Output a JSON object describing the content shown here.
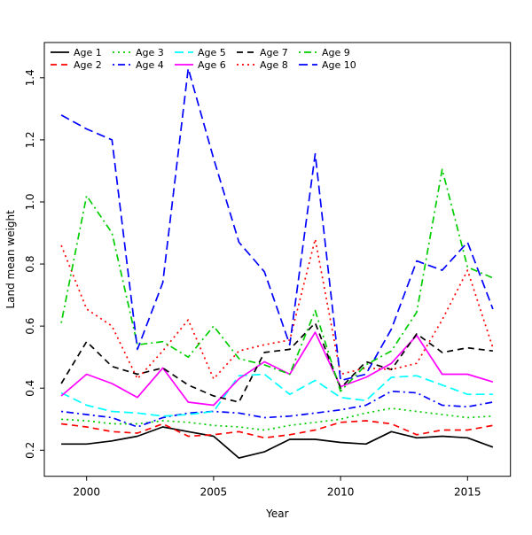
{
  "chart_data": {
    "type": "line",
    "title": "",
    "xlabel": "Year",
    "ylabel": "Land mean weight",
    "x": [
      1999,
      2000,
      2001,
      2002,
      2003,
      2004,
      2005,
      2006,
      2007,
      2008,
      2009,
      2010,
      2011,
      2012,
      2013,
      2014,
      2015,
      2016
    ],
    "x_ticks": [
      2000,
      2005,
      2010,
      2015
    ],
    "y_ticks": [
      0.2,
      0.4,
      0.6,
      0.8,
      1.0,
      1.2,
      1.4
    ],
    "y_tick_labels": [
      "0.2",
      "0.4",
      "0.6",
      "0.8",
      "1.0",
      "1.2",
      "1.4"
    ],
    "x_tick_labels": [
      "2000",
      "2005",
      "2010",
      "2015"
    ],
    "ylim": [
      0.13,
      1.47
    ],
    "xlim": [
      1998.3,
      2016.7
    ],
    "grid": false,
    "legend_position": "top-left, 2 rows x 5 columns, no border",
    "series": [
      {
        "name": "Age 1",
        "color": "#000000",
        "linestyle": "solid",
        "values": [
          0.22,
          0.22,
          0.23,
          0.245,
          0.275,
          0.26,
          0.245,
          0.175,
          0.195,
          0.235,
          0.235,
          0.225,
          0.22,
          0.26,
          0.24,
          0.245,
          0.24,
          0.21
        ]
      },
      {
        "name": "Age 2",
        "color": "#ff0000",
        "linestyle": "dashed",
        "values": [
          0.285,
          0.275,
          0.26,
          0.255,
          0.285,
          0.245,
          0.25,
          0.26,
          0.24,
          0.25,
          0.265,
          0.29,
          0.295,
          0.285,
          0.25,
          0.265,
          0.265,
          0.28
        ]
      },
      {
        "name": "Age 3",
        "color": "#00cd00",
        "linestyle": "dotted",
        "values": [
          0.3,
          0.295,
          0.285,
          0.285,
          0.295,
          0.29,
          0.28,
          0.275,
          0.265,
          0.28,
          0.29,
          0.3,
          0.32,
          0.335,
          0.325,
          0.315,
          0.305,
          0.31
        ]
      },
      {
        "name": "Age 4",
        "color": "#0000ff",
        "linestyle": "dotdash",
        "values": [
          0.325,
          0.315,
          0.305,
          0.275,
          0.305,
          0.32,
          0.325,
          0.32,
          0.305,
          0.31,
          0.32,
          0.33,
          0.345,
          0.39,
          0.385,
          0.345,
          0.34,
          0.355
        ]
      },
      {
        "name": "Age 5",
        "color": "#00ffff",
        "linestyle": "longdash",
        "values": [
          0.385,
          0.345,
          0.325,
          0.32,
          0.31,
          0.315,
          0.325,
          0.44,
          0.445,
          0.38,
          0.425,
          0.37,
          0.36,
          0.435,
          0.44,
          0.41,
          0.38,
          0.38
        ]
      },
      {
        "name": "Age 6",
        "color": "#ff00ff",
        "linestyle": "solid",
        "values": [
          0.375,
          0.445,
          0.415,
          0.37,
          0.465,
          0.355,
          0.345,
          0.43,
          0.485,
          0.445,
          0.58,
          0.405,
          0.435,
          0.48,
          0.57,
          0.445,
          0.445,
          0.42
        ]
      },
      {
        "name": "Age 7",
        "color": "#000000",
        "linestyle": "dashed",
        "values": [
          0.415,
          0.55,
          0.47,
          0.445,
          0.465,
          0.41,
          0.375,
          0.355,
          0.515,
          0.525,
          0.61,
          0.4,
          0.485,
          0.46,
          0.575,
          0.515,
          0.53,
          0.52
        ]
      },
      {
        "name": "Age 8",
        "color": "#ff0000",
        "linestyle": "dotted",
        "values": [
          0.86,
          0.655,
          0.6,
          0.43,
          0.52,
          0.62,
          0.43,
          0.52,
          0.54,
          0.555,
          0.88,
          0.445,
          0.465,
          0.46,
          0.48,
          0.62,
          0.78,
          0.53
        ]
      },
      {
        "name": "Age 9",
        "color": "#00cd00",
        "linestyle": "dotdash",
        "values": [
          0.61,
          1.02,
          0.9,
          0.54,
          0.55,
          0.5,
          0.6,
          0.495,
          0.475,
          0.445,
          0.65,
          0.39,
          0.475,
          0.52,
          0.645,
          1.105,
          0.79,
          0.755
        ]
      },
      {
        "name": "Age 10",
        "color": "#0000ff",
        "linestyle": "longdash",
        "values": [
          1.28,
          1.235,
          1.2,
          0.525,
          0.74,
          1.43,
          1.14,
          0.87,
          0.775,
          0.54,
          1.155,
          0.425,
          0.445,
          0.59,
          0.81,
          0.78,
          0.87,
          0.655
        ]
      }
    ]
  },
  "layout_note": "white background, black 1px plot frame, y tick labels rotated 90deg"
}
